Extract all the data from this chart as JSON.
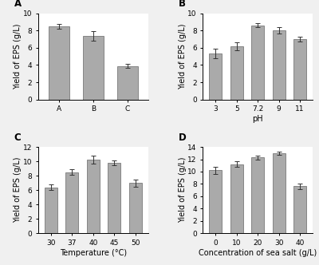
{
  "panel_A": {
    "categories": [
      "A",
      "B",
      "C"
    ],
    "values": [
      8.5,
      7.4,
      3.9
    ],
    "errors": [
      0.3,
      0.55,
      0.2
    ],
    "ylim": [
      0,
      10
    ],
    "yticks": [
      0,
      2,
      4,
      6,
      8,
      10
    ],
    "ylabel": "Yield of EPS (g/L)",
    "xlabel": "",
    "label": "A"
  },
  "panel_B": {
    "categories": [
      "3",
      "5",
      "7.2",
      "9",
      "11"
    ],
    "values": [
      5.3,
      6.2,
      8.6,
      8.0,
      7.0
    ],
    "errors": [
      0.55,
      0.45,
      0.25,
      0.35,
      0.3
    ],
    "ylim": [
      0,
      10
    ],
    "yticks": [
      0,
      2,
      4,
      6,
      8,
      10
    ],
    "ylabel": "Yield of EPS (g/L)",
    "xlabel": "pH",
    "label": "B"
  },
  "panel_C": {
    "categories": [
      "30",
      "37",
      "40",
      "45",
      "50"
    ],
    "values": [
      6.4,
      8.5,
      10.2,
      9.8,
      7.0
    ],
    "errors": [
      0.4,
      0.35,
      0.55,
      0.3,
      0.5
    ],
    "ylim": [
      0,
      12
    ],
    "yticks": [
      0,
      2,
      4,
      6,
      8,
      10,
      12
    ],
    "ylabel": "Yield of EPS (g/L)",
    "xlabel": "Temperature (°C)",
    "label": "C"
  },
  "panel_D": {
    "categories": [
      "0",
      "10",
      "20",
      "30",
      "40"
    ],
    "values": [
      10.2,
      11.2,
      12.3,
      13.0,
      7.6
    ],
    "errors": [
      0.55,
      0.45,
      0.35,
      0.3,
      0.4
    ],
    "ylim": [
      0,
      14
    ],
    "yticks": [
      0,
      2,
      4,
      6,
      8,
      10,
      12,
      14
    ],
    "ylabel": "Yield of EPS (g/L)",
    "xlabel": "Concentration of sea salt (g/L)",
    "label": "D"
  },
  "bar_color": "#aaaaaa",
  "bar_edgecolor": "#666666",
  "bar_width": 0.6,
  "capsize": 2.5,
  "ecolor": "#333333",
  "elinewidth": 0.7,
  "tick_fontsize": 6.5,
  "axis_label_fontsize": 7,
  "panel_label_fontsize": 8.5,
  "background_color": "#f0f0f0",
  "axes_facecolor": "#ffffff"
}
